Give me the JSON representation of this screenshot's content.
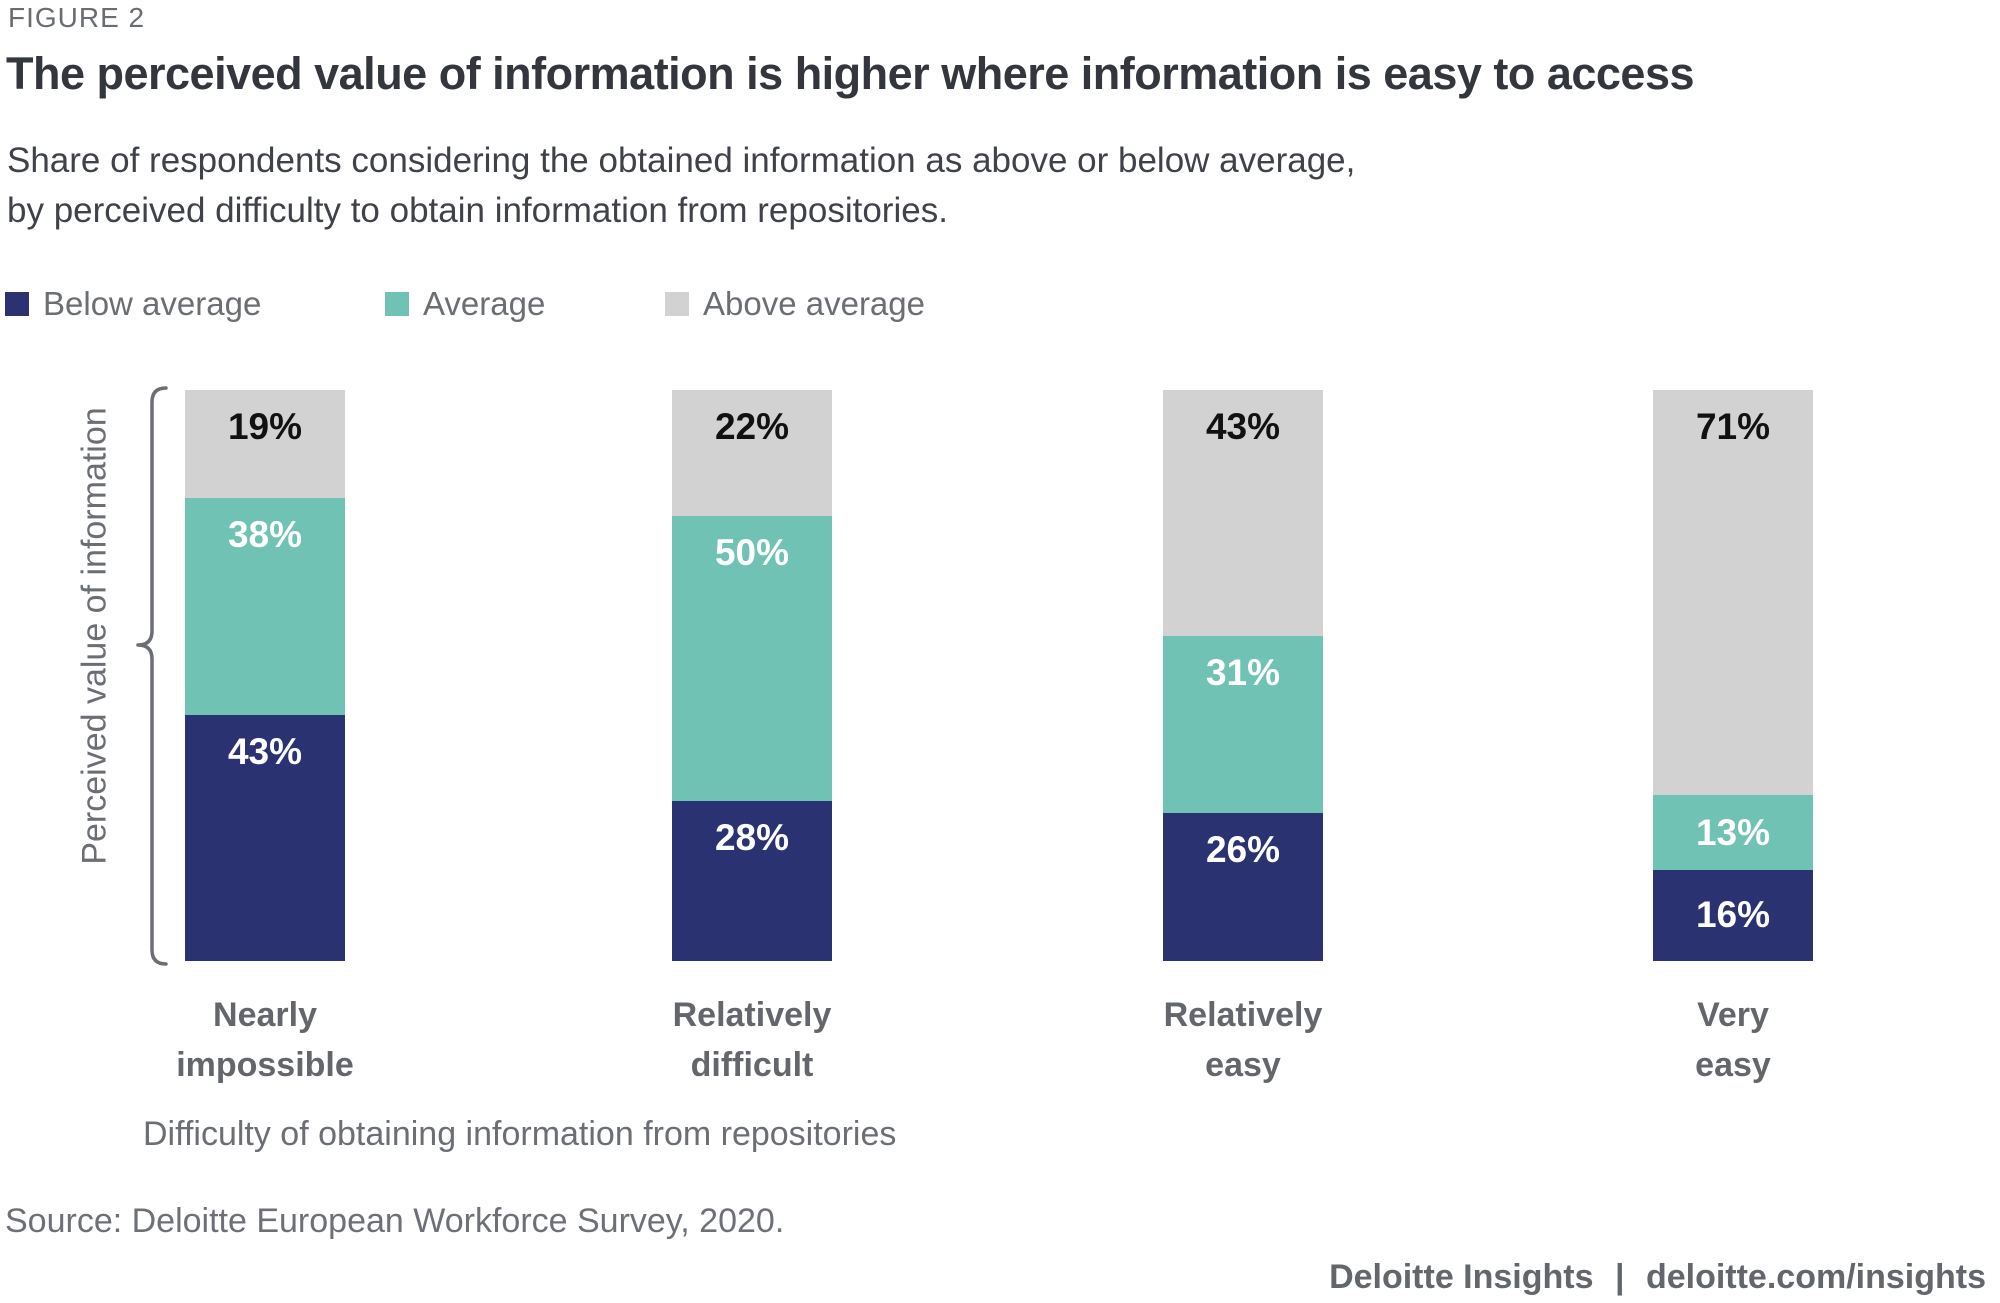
{
  "figure_label": "FIGURE 2",
  "title": "The perceived value of information is higher where information is easy to access",
  "subtitle_line1": "Share of respondents considering the obtained information as above or below average,",
  "subtitle_line2": "by perceived difficulty to obtain information from repositories.",
  "legend": [
    {
      "label": "Below average",
      "color": "#2b3272"
    },
    {
      "label": "Average",
      "color": "#6fc2b4"
    },
    {
      "label": "Above average",
      "color": "#d2d2d2"
    }
  ],
  "chart_data": {
    "type": "bar",
    "stacked": true,
    "categories": [
      [
        "Nearly",
        "impossible"
      ],
      [
        "Relatively",
        "difficult"
      ],
      [
        "Relatively",
        "easy"
      ],
      [
        "Very",
        "easy"
      ]
    ],
    "series": [
      {
        "name": "Below average",
        "color": "#2b3272",
        "text_color": "#ffffff",
        "values": [
          43,
          28,
          26,
          16
        ]
      },
      {
        "name": "Average",
        "color": "#6fc2b4",
        "text_color": "#ffffff",
        "values": [
          38,
          50,
          31,
          13
        ]
      },
      {
        "name": "Above average",
        "color": "#d2d2d2",
        "text_color": "#111111",
        "values": [
          19,
          22,
          43,
          71
        ]
      }
    ],
    "value_suffix": "%",
    "ylabel": "Perceived value of information",
    "xlabel": "Difficulty of obtaining information from repositories",
    "ylim": [
      0,
      100
    ],
    "grid": false,
    "legend_position": "top-left"
  },
  "source": "Source: Deloitte European Workforce Survey, 2020.",
  "footer": {
    "brand": "Deloitte Insights",
    "separator": "|",
    "link": "deloitte.com/insights"
  }
}
